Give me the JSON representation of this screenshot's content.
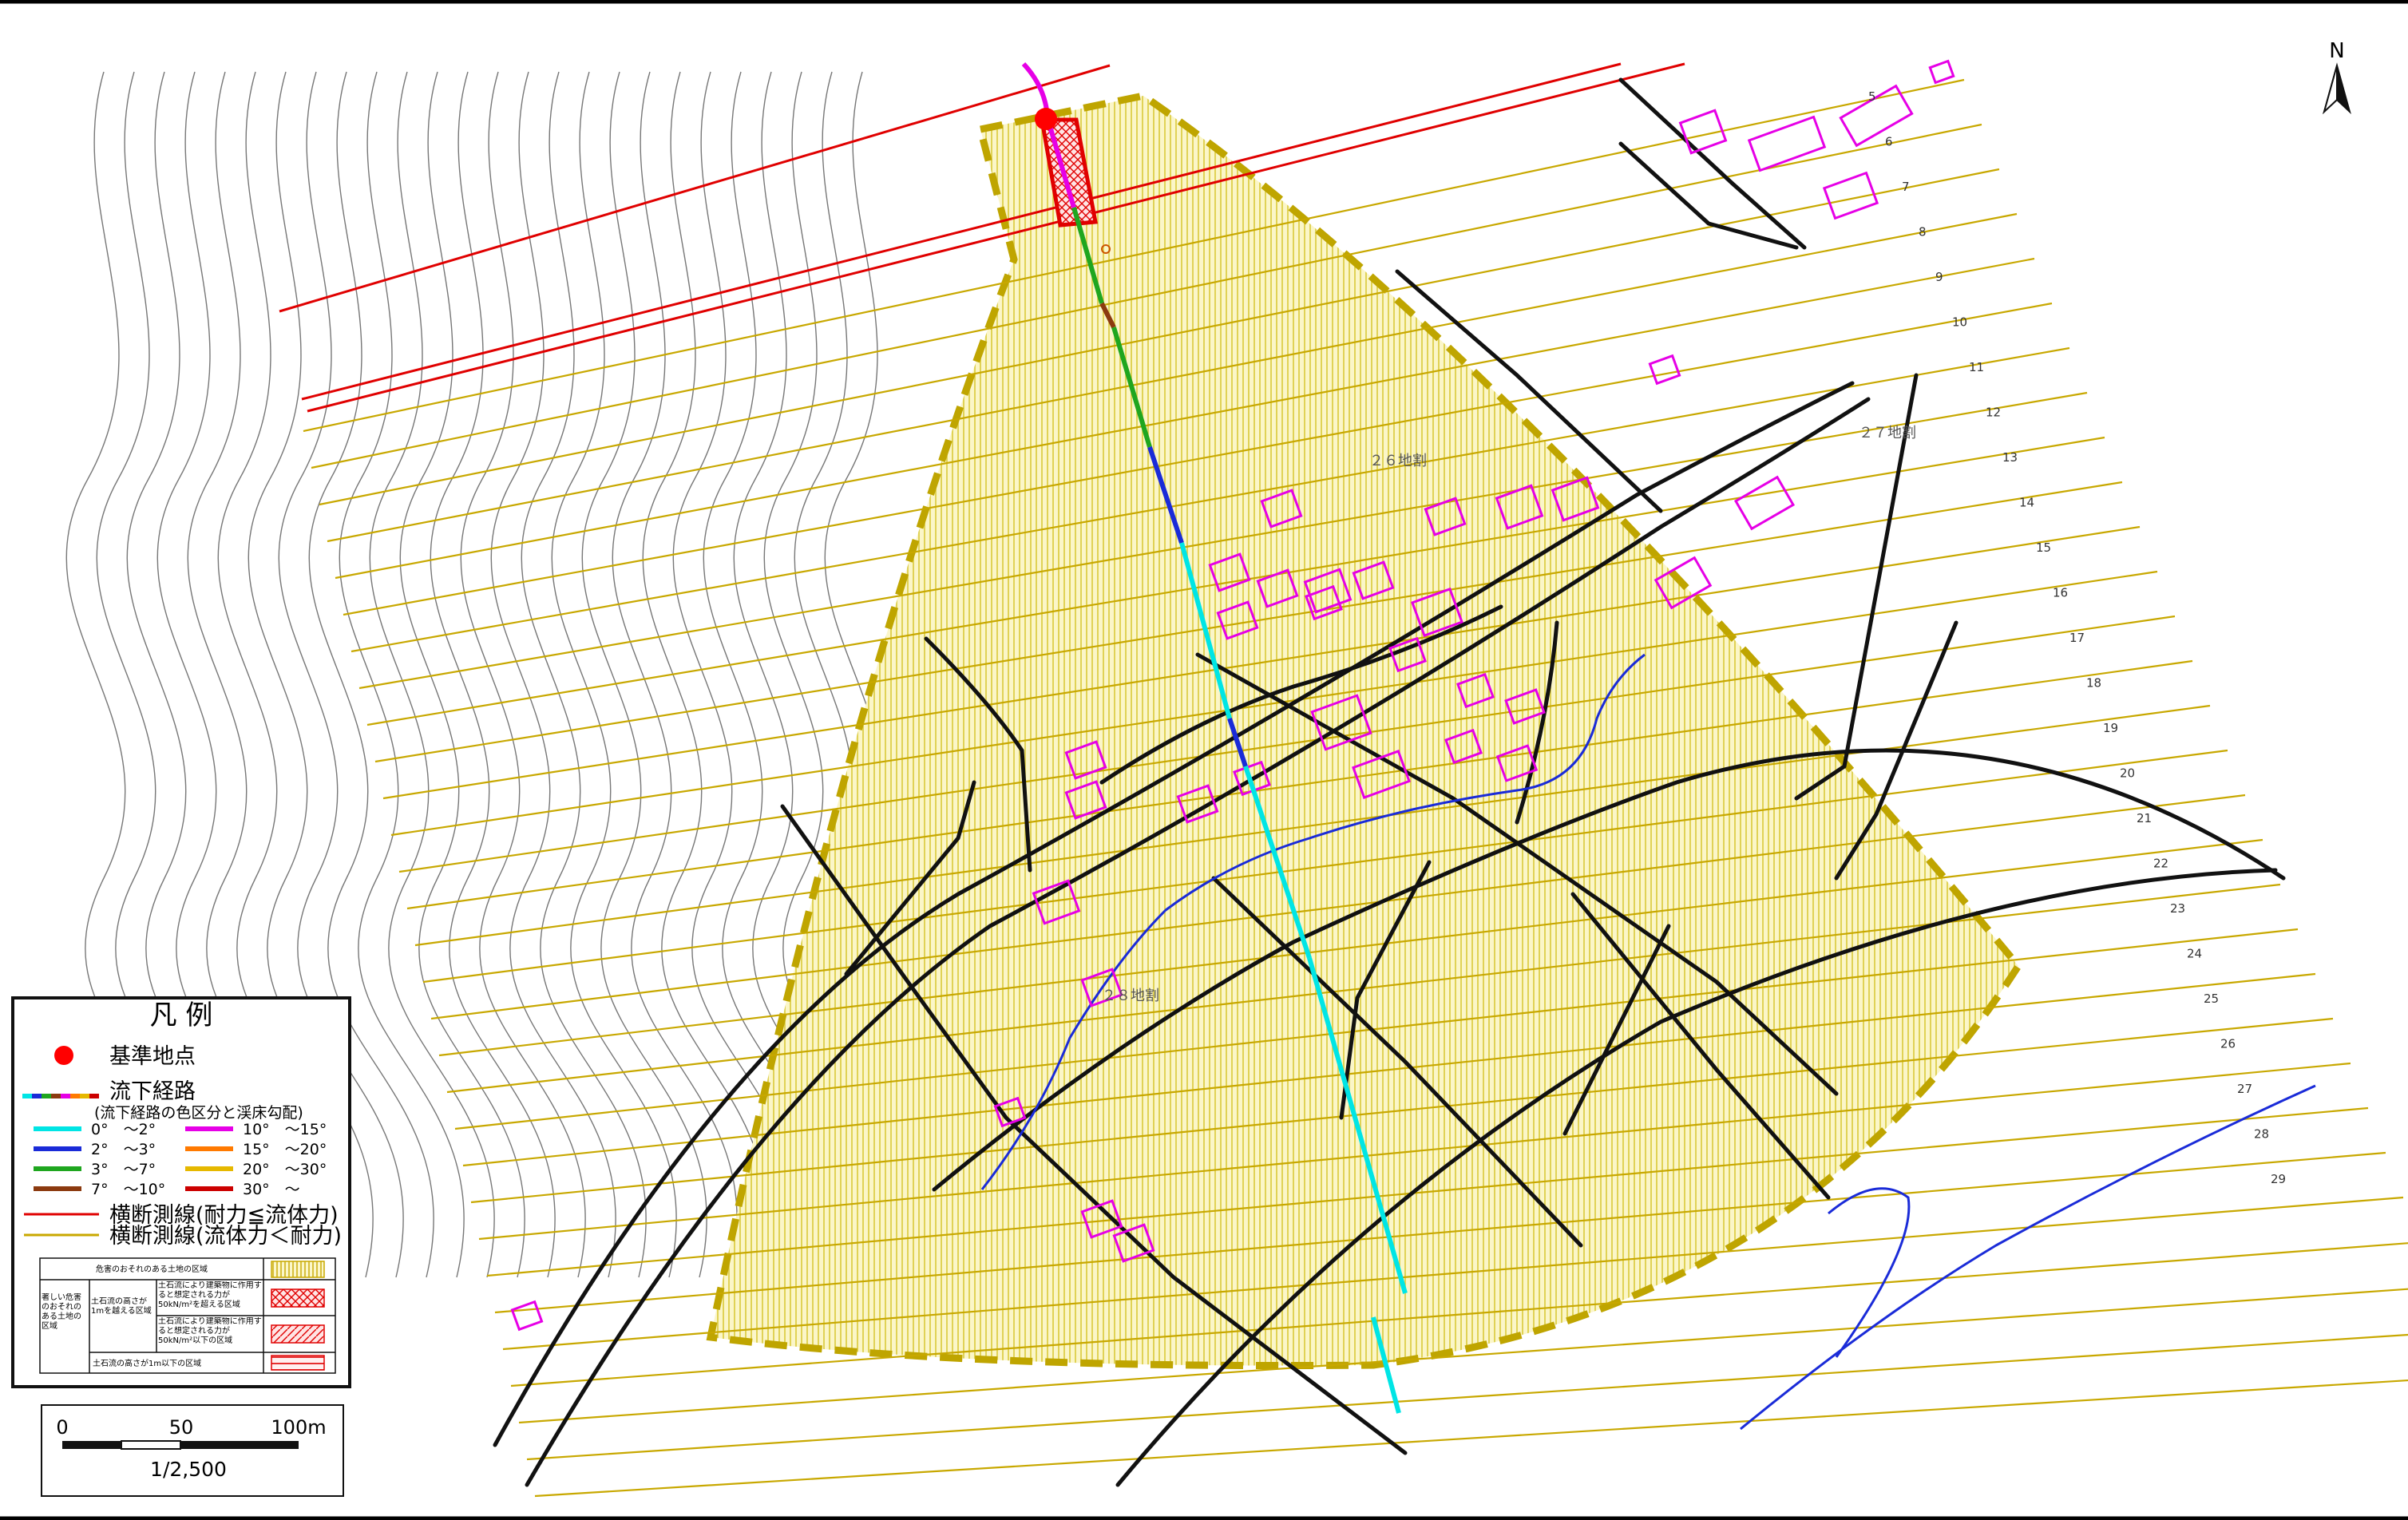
{
  "north_label": "N",
  "district_labels": [
    "２６地割",
    "２７地割",
    "２８地割"
  ],
  "section_numbers": [
    "5",
    "6",
    "7",
    "8",
    "9",
    "10",
    "11",
    "12",
    "13",
    "14",
    "15",
    "16",
    "17",
    "18",
    "19",
    "20",
    "21",
    "22",
    "23",
    "24",
    "25",
    "26",
    "27",
    "28",
    "29"
  ],
  "legend": {
    "title": "凡 例",
    "reference_point": "基準地点",
    "flow_path": "流下経路",
    "flow_path_note": "(流下経路の色区分と渓床勾配)",
    "slope_classes": [
      {
        "label": "0°　～2°",
        "color": "#00e5e5"
      },
      {
        "label": "2°　～3°",
        "color": "#1a2bd8"
      },
      {
        "label": "3°　～7°",
        "color": "#1fa61f"
      },
      {
        "label": "7°　～10°",
        "color": "#8b3a0f"
      },
      {
        "label": "10°　～15°",
        "color": "#e600e6"
      },
      {
        "label": "15°　～20°",
        "color": "#ff7a00"
      },
      {
        "label": "20°　～30°",
        "color": "#e6b800"
      },
      {
        "label": "30°　～",
        "color": "#cc0000"
      }
    ],
    "cross_section_red": "横断測線(耐力≦流体力)",
    "cross_section_yellow": "横断測線(流体力＜耐力)",
    "zone_table": {
      "warning_zone": "危害のおそれのある土地の区域",
      "special_zone": "著しい危害のおそれのある土地の区域",
      "height_over_1m": "土石流の高さが1mを越える区域",
      "force_over_50_a": "土石流により建築物に作用すると想定される力が50kN/m²を超える区域",
      "force_over_50_b": "土石流により建築物に作用すると想定される力が50kN/m²以下の区域",
      "height_under_1m": "土石流の高さが1m以下の区域"
    }
  },
  "scale_bar": {
    "ticks": [
      "0",
      "50",
      "100m"
    ],
    "ratio": "1/2,500"
  },
  "colors": {
    "hazard_zone_fill": "#fbf6c8",
    "hazard_zone_border": "#bfa500",
    "yellow_section": "#c8a800",
    "red_section": "#e00000",
    "building": "#e600e6",
    "road": "#111111",
    "contour": "#777777",
    "river": "#1a2bd8",
    "reference_point": "#ff0000"
  },
  "icons": [
    "north-arrow-icon",
    "reference-point-icon"
  ]
}
